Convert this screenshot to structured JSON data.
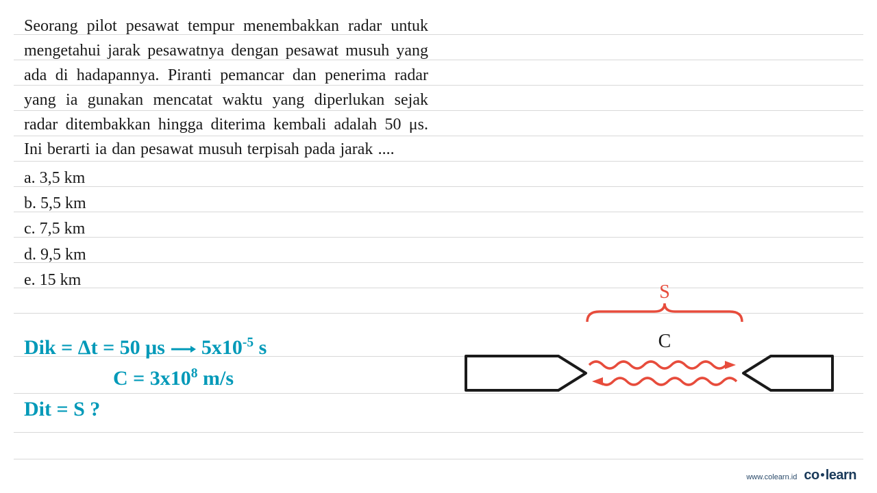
{
  "question": {
    "text": "Seorang pilot pesawat tempur menembakkan radar untuk mengetahui jarak pesawatnya dengan pesawat musuh yang ada di hadapannya. Piranti pemancar dan penerima radar yang ia gunakan mencatat waktu yang diperlukan sejak radar ditembakkan hingga diterima kembali adalah 50 μs. Ini berarti ia dan pesawat musuh terpisah pada jarak ....",
    "options": {
      "a": "a.  3,5 km",
      "b": "b.  5,5 km",
      "c": "c.  7,5 km",
      "d": "d.  9,5 km",
      "e": "e.  15 km"
    }
  },
  "handwriting": {
    "line1_prefix": "Dik = Δt = 50 μs ",
    "line1_suffix": " 5x10",
    "line1_exp": "-5",
    "line1_unit": " s",
    "line2_prefix": "C = 3x10",
    "line2_exp": "8",
    "line2_suffix": "  m/s",
    "line3": "Dit = S ?",
    "color": "#0099b8"
  },
  "diagram": {
    "label_s": "S",
    "label_c": "C",
    "object_stroke": "#1a1a1a",
    "object_stroke_width": 4,
    "wave_color": "#e74c3c",
    "wave_stroke_width": 3.5,
    "label_color_s": "#e74c3c",
    "label_color_c": "#1a1a1a",
    "label_fontsize": 28
  },
  "ruled_lines": {
    "color": "#d8d8d8",
    "positions": [
      50,
      87,
      124,
      161,
      198,
      235,
      272,
      309,
      346,
      383,
      420,
      457,
      520,
      574,
      631,
      670
    ]
  },
  "footer": {
    "url": "www.colearn.id",
    "logo_co": "co",
    "logo_learn": "learn",
    "color": "#1a3a5a"
  }
}
